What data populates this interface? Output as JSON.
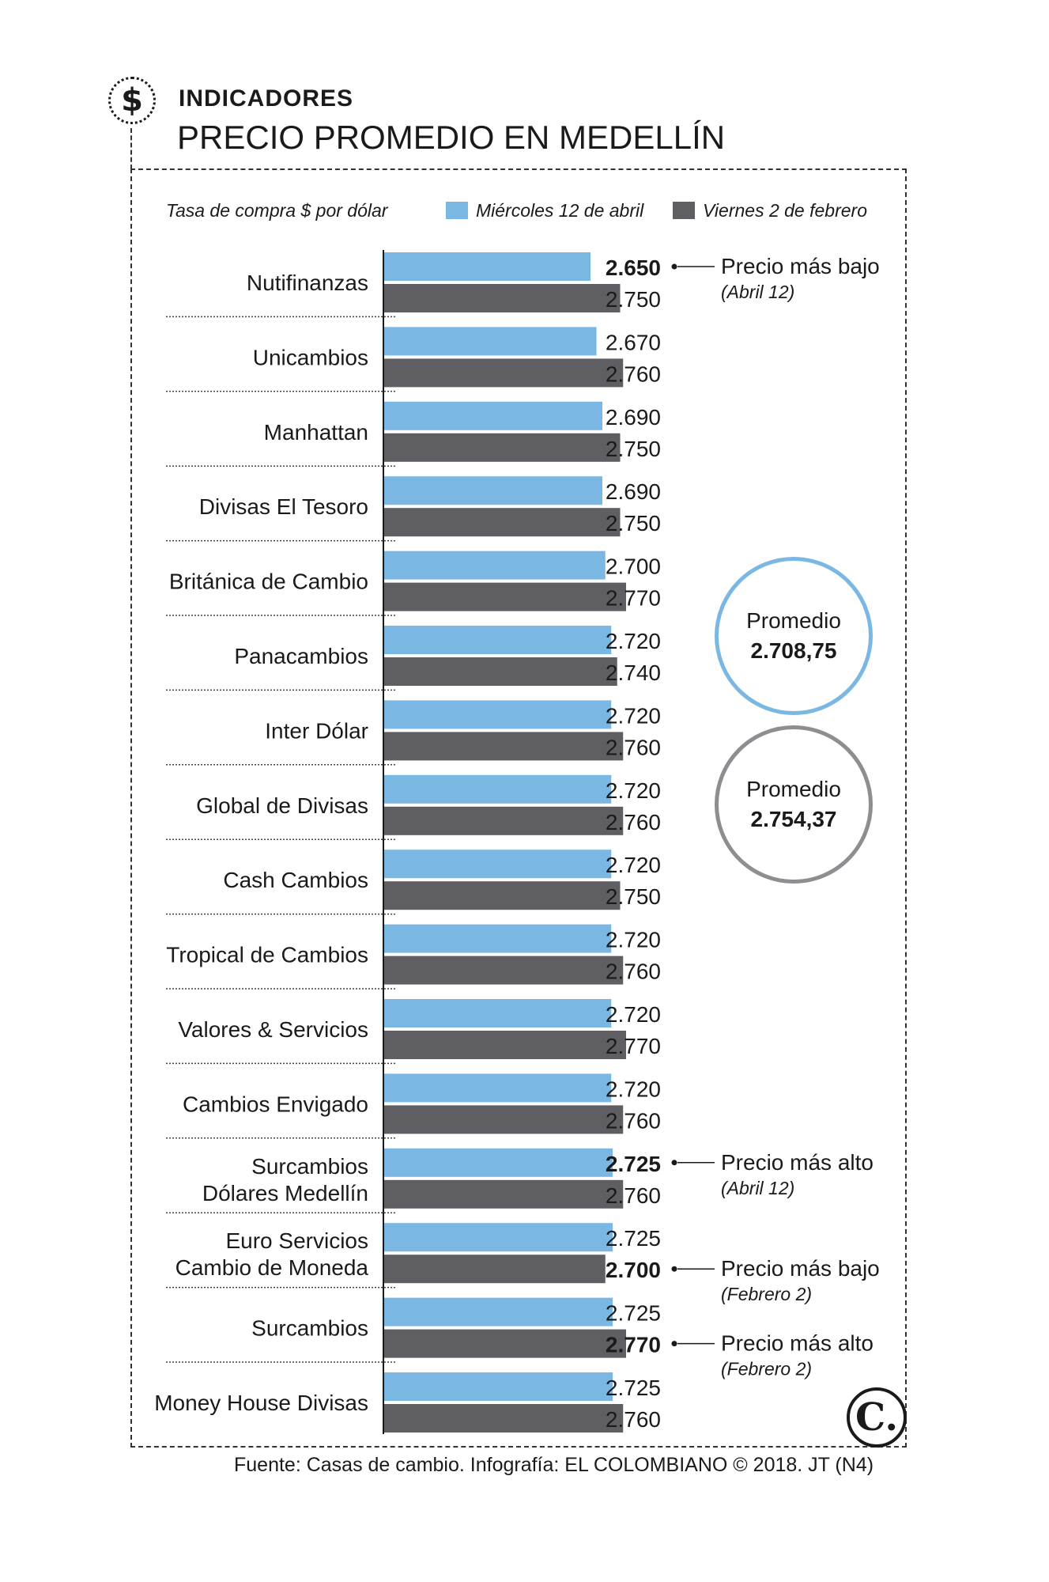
{
  "header": {
    "section": "INDICADORES",
    "title": "PRECIO PROMEDIO EN MEDELLÍN",
    "icon": "dollar-icon"
  },
  "colors": {
    "april": "#7ab7e2",
    "february": "#5f5f63",
    "ring_april": "#7ab7e2",
    "ring_february": "#8e8e92"
  },
  "chart_data": {
    "type": "bar",
    "orientation": "horizontal",
    "subtitle": "Tasa de compra $ por dólar",
    "legend_position": "top",
    "xlim": [
      0,
      2800
    ],
    "categories": [
      [
        "Nutifinanzas"
      ],
      [
        "Unicambios"
      ],
      [
        "Manhattan"
      ],
      [
        "Divisas El Tesoro"
      ],
      [
        "Británica de Cambio"
      ],
      [
        "Panacambios"
      ],
      [
        "Inter Dólar"
      ],
      [
        "Global de Divisas"
      ],
      [
        "Cash Cambios"
      ],
      [
        "Tropical de Cambios"
      ],
      [
        "Valores & Servicios"
      ],
      [
        "Cambios Envigado"
      ],
      [
        "Surcambios",
        "Dólares Medellín"
      ],
      [
        "Euro Servicios",
        "Cambio de Moneda"
      ],
      [
        "Surcambios"
      ],
      [
        "Money House Divisas"
      ]
    ],
    "series": [
      {
        "name": "Miércoles 12 de abril",
        "values": [
          2650,
          2670,
          2690,
          2690,
          2700,
          2720,
          2720,
          2720,
          2720,
          2720,
          2720,
          2720,
          2725,
          2725,
          2725,
          2725
        ],
        "labels": [
          "2.650",
          "2.670",
          "2.690",
          "2.690",
          "2.700",
          "2.720",
          "2.720",
          "2.720",
          "2.720",
          "2.720",
          "2.720",
          "2.720",
          "2.725",
          "2.725",
          "2.725",
          "2.725"
        ]
      },
      {
        "name": "Viernes 2 de febrero",
        "values": [
          2750,
          2760,
          2750,
          2750,
          2770,
          2740,
          2760,
          2760,
          2750,
          2760,
          2770,
          2760,
          2760,
          2700,
          2770,
          2760
        ],
        "labels": [
          "2.750",
          "2.760",
          "2.750",
          "2.750",
          "2.770",
          "2.740",
          "2.760",
          "2.760",
          "2.750",
          "2.760",
          "2.770",
          "2.760",
          "2.760",
          "2.700",
          "2.770",
          "2.760"
        ]
      }
    ],
    "annotations": [
      {
        "row": 0,
        "series": 0,
        "text": "Precio más bajo",
        "sub": "(Abril 12)"
      },
      {
        "row": 12,
        "series": 0,
        "text": "Precio más alto",
        "sub": "(Abril 12)"
      },
      {
        "row": 13,
        "series": 1,
        "text": "Precio más bajo",
        "sub": "(Febrero 2)"
      },
      {
        "row": 14,
        "series": 1,
        "text": "Precio más alto",
        "sub": "(Febrero 2)"
      }
    ],
    "averages": [
      {
        "label": "Promedio",
        "value": "2.708,75",
        "series": 0
      },
      {
        "label": "Promedio",
        "value": "2.754,37",
        "series": 1
      }
    ]
  },
  "footer": {
    "source": "Fuente: Casas de cambio. Infografía: EL COLOMBIANO © 2018. JT (N4)",
    "logo": "C."
  }
}
